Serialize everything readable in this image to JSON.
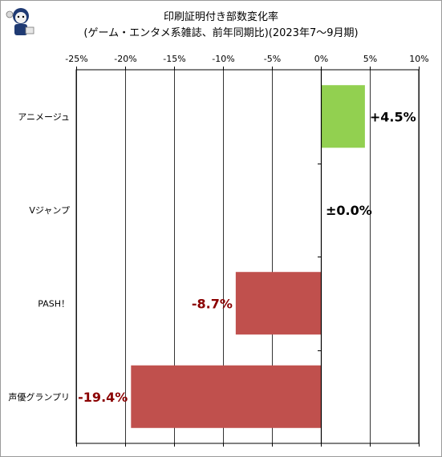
{
  "chart_data": {
    "type": "bar",
    "orientation": "horizontal",
    "title": "印刷証明付き部数変化率",
    "subtitle": "(ゲーム・エンタメ系雑誌、前年同期比)(2023年7～9月期)",
    "categories": [
      "アニメージュ",
      "Vジャンプ",
      "PASH！",
      "声優グランプリ"
    ],
    "values": [
      4.5,
      0.0,
      -8.7,
      -19.4
    ],
    "data_labels": [
      "+4.5%",
      "±0.0%",
      "-8.7%",
      "-19.4%"
    ],
    "xlim": [
      -25,
      10
    ],
    "ticks": [
      -25,
      -20,
      -15,
      -10,
      -5,
      0,
      5,
      10
    ],
    "tick_labels": [
      "-25%",
      "-20%",
      "-15%",
      "-10%",
      "-5%",
      "0%",
      "5%",
      "10%"
    ],
    "vertical_grid": true,
    "axis_position": "top",
    "colors": {
      "positive": "#92d050",
      "negative": "#c0504d",
      "label_positive": "#000000",
      "label_negative": "#8b0000",
      "grid": "#000000"
    }
  }
}
